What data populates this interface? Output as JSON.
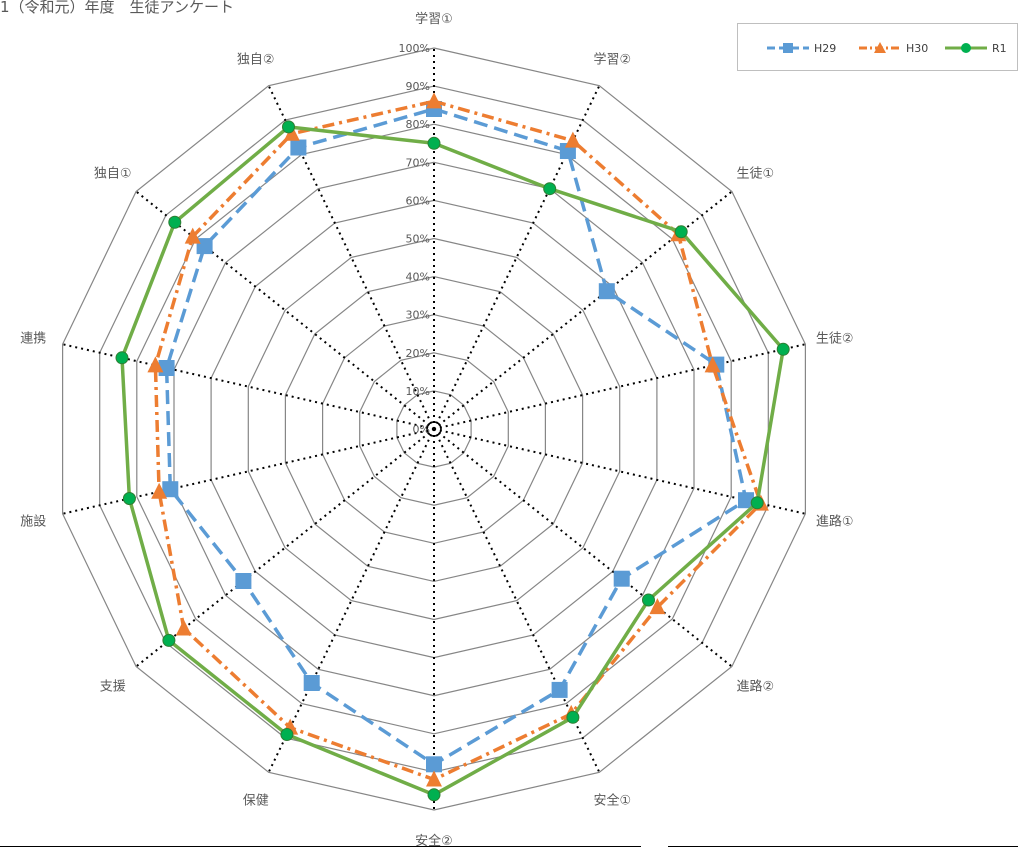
{
  "chart_data": {
    "type": "radar",
    "title": "1（令和元）年度　生徒アンケート",
    "categories": [
      "学習①",
      "学習②",
      "生徒①",
      "生徒②",
      "進路①",
      "進路②",
      "安全①",
      "安全②",
      "保健",
      "支援",
      "施設",
      "連携",
      "独自①",
      "独自②"
    ],
    "axis": {
      "min": 0,
      "max": 1,
      "step": 0.1,
      "tick_labels": [
        "0%",
        "10%",
        "20%",
        "30%",
        "40%",
        "50%",
        "60%",
        "70%",
        "80%",
        "90%",
        "100%"
      ],
      "grid": true
    },
    "legend_position": "top-right",
    "series": [
      {
        "name": "H29",
        "color": "#5b9bd5",
        "marker": "square",
        "line": "dashed",
        "values": [
          0.84,
          0.81,
          0.58,
          0.76,
          0.84,
          0.63,
          0.76,
          0.88,
          0.74,
          0.64,
          0.71,
          0.72,
          0.77,
          0.82
        ]
      },
      {
        "name": "H30",
        "color": "#ed7d31",
        "marker": "triangle",
        "line": "dashdot",
        "values": [
          0.86,
          0.84,
          0.82,
          0.75,
          0.88,
          0.75,
          0.83,
          0.92,
          0.87,
          0.84,
          0.74,
          0.75,
          0.81,
          0.86
        ]
      },
      {
        "name": "R1",
        "color": "#70ad47",
        "marker": "circle",
        "line": "solid",
        "values": [
          0.75,
          0.7,
          0.83,
          0.94,
          0.87,
          0.72,
          0.84,
          0.96,
          0.89,
          0.89,
          0.82,
          0.84,
          0.87,
          0.88
        ]
      }
    ]
  }
}
